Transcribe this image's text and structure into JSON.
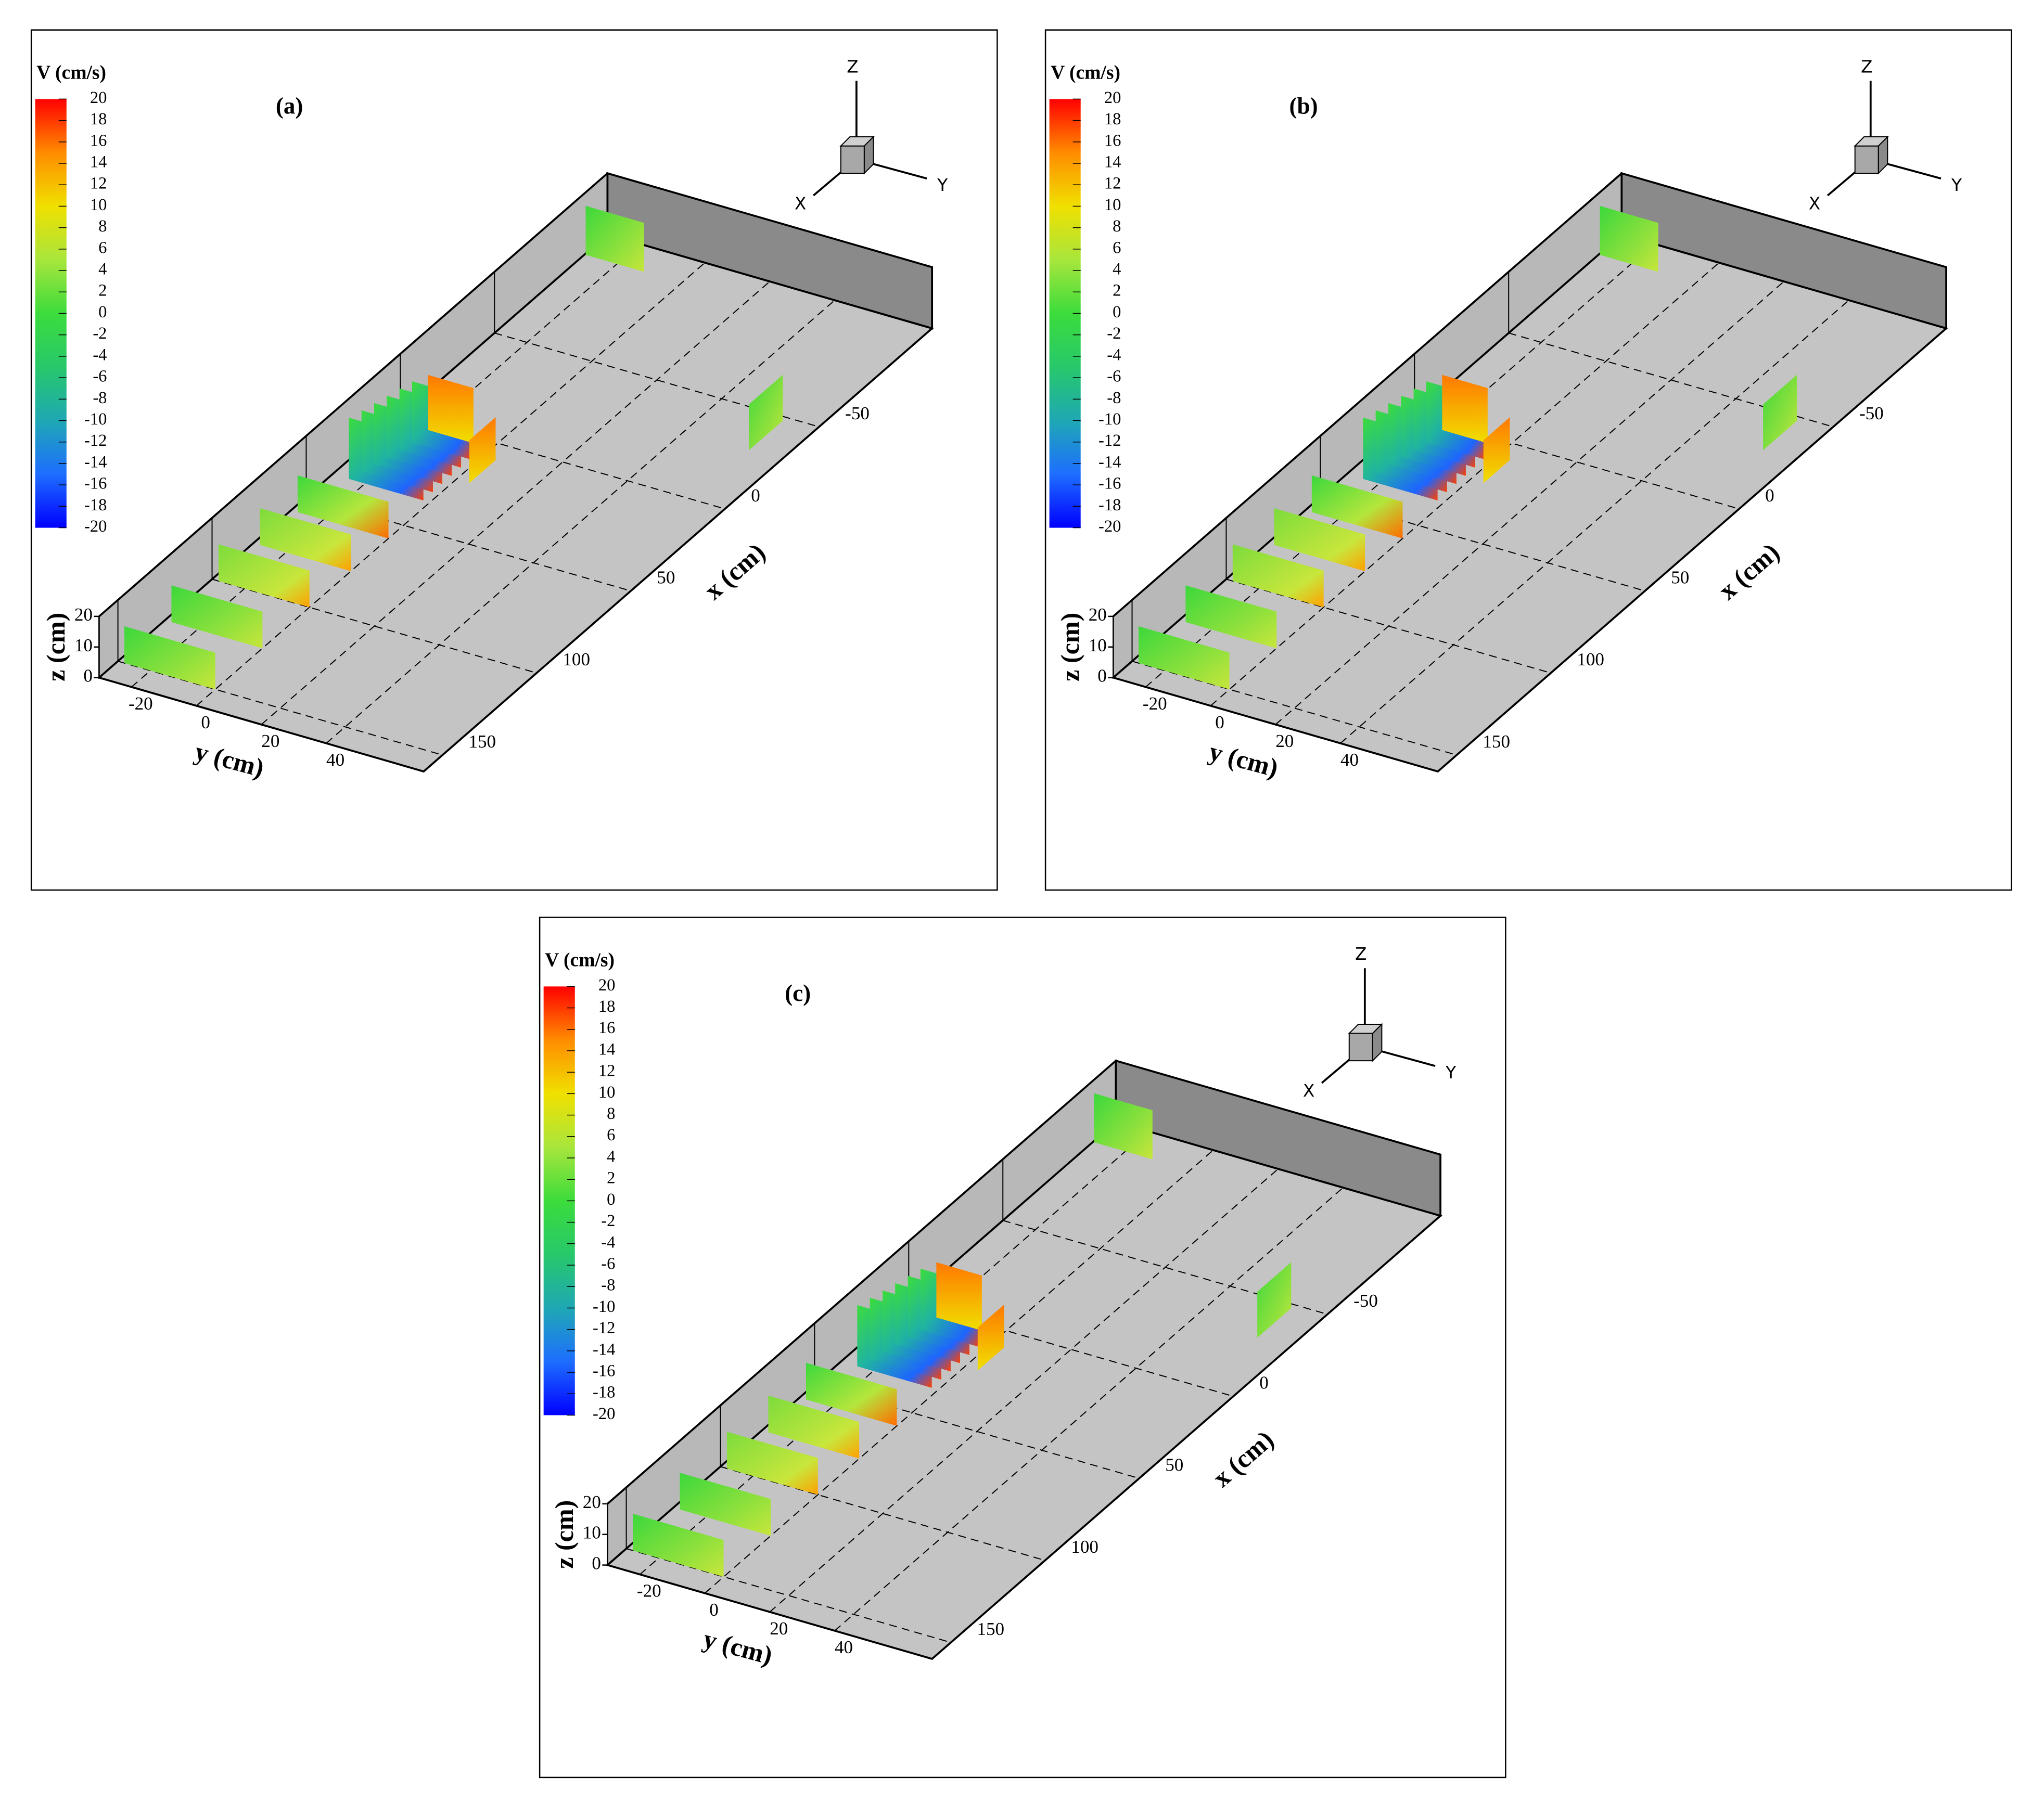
{
  "chart_data": [
    {
      "type": "3d-slice",
      "label": "(a)",
      "colorbar": {
        "title": "V (cm/s)",
        "clim": [
          -20,
          20
        ],
        "ticks": [
          20,
          18,
          16,
          14,
          12,
          10,
          8,
          6,
          4,
          2,
          0,
          -2,
          -4,
          -6,
          -8,
          -10,
          -12,
          -14,
          -16,
          -18,
          -20
        ],
        "colormap": [
          "#0000ff",
          "#1e6eff",
          "#1fa8b4",
          "#27c86a",
          "#3cdc3c",
          "#a8e63c",
          "#f0e000",
          "#ff8c00",
          "#ff0000"
        ]
      },
      "xlabel": "x (cm)",
      "ylabel": "y (cm)",
      "zlabel": "z (cm)",
      "xlim": [
        -110,
        160
      ],
      "xticks": [
        -50,
        0,
        50,
        100,
        150
      ],
      "ylim": [
        -30,
        70
      ],
      "yticks": [
        -20,
        0,
        20,
        40
      ],
      "zlim": [
        0,
        20
      ],
      "zticks": [
        0,
        10,
        20
      ],
      "triad": [
        "X",
        "Y",
        "Z"
      ]
    },
    {
      "type": "3d-slice",
      "label": "(b)",
      "colorbar": {
        "title": "V (cm/s)",
        "clim": [
          -20,
          20
        ],
        "ticks": [
          20,
          18,
          16,
          14,
          12,
          10,
          8,
          6,
          4,
          2,
          0,
          -2,
          -4,
          -6,
          -8,
          -10,
          -12,
          -14,
          -16,
          -18,
          -20
        ],
        "colormap": [
          "#0000ff",
          "#1e6eff",
          "#1fa8b4",
          "#27c86a",
          "#3cdc3c",
          "#a8e63c",
          "#f0e000",
          "#ff8c00",
          "#ff0000"
        ]
      },
      "xlabel": "x (cm)",
      "ylabel": "y (cm)",
      "zlabel": "z (cm)",
      "xlim": [
        -110,
        160
      ],
      "xticks": [
        -50,
        0,
        50,
        100,
        150
      ],
      "ylim": [
        -30,
        70
      ],
      "yticks": [
        -20,
        0,
        20,
        40
      ],
      "zlim": [
        0,
        20
      ],
      "zticks": [
        0,
        10,
        20
      ],
      "triad": [
        "X",
        "Y",
        "Z"
      ]
    },
    {
      "type": "3d-slice",
      "label": "(c)",
      "colorbar": {
        "title": "V (cm/s)",
        "clim": [
          -20,
          20
        ],
        "ticks": [
          20,
          18,
          16,
          14,
          12,
          10,
          8,
          6,
          4,
          2,
          0,
          -2,
          -4,
          -6,
          -8,
          -10,
          -12,
          -14,
          -16,
          -18,
          -20
        ],
        "colormap": [
          "#0000ff",
          "#1e6eff",
          "#1fa8b4",
          "#27c86a",
          "#3cdc3c",
          "#a8e63c",
          "#f0e000",
          "#ff8c00",
          "#ff0000"
        ]
      },
      "xlabel": "x (cm)",
      "ylabel": "y (cm)",
      "zlabel": "z (cm)",
      "xlim": [
        -110,
        160
      ],
      "xticks": [
        -50,
        0,
        50,
        100,
        150
      ],
      "ylim": [
        -30,
        70
      ],
      "yticks": [
        -20,
        0,
        20,
        40
      ],
      "zlim": [
        0,
        20
      ],
      "zticks": [
        0,
        10,
        20
      ],
      "triad": [
        "X",
        "Y",
        "Z"
      ]
    }
  ]
}
